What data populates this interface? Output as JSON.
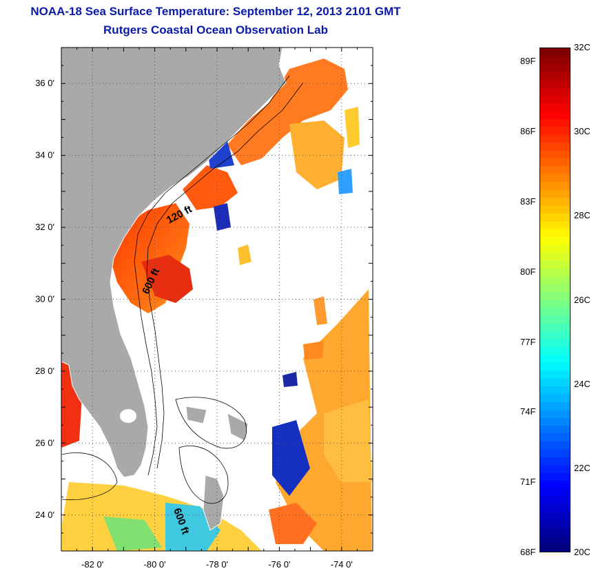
{
  "title": "NOAA-18 Sea Surface Temperature:  September 12, 2013 2101 GMT",
  "subtitle": "Rutgers Coastal Ocean Observation Lab",
  "map": {
    "lon_range": [
      -83.0,
      -73.0
    ],
    "lat_range": [
      23.0,
      37.0
    ],
    "lon_ticks": [
      {
        "value": -82,
        "label": "-82 0'"
      },
      {
        "value": -80,
        "label": "-80 0'"
      },
      {
        "value": -78,
        "label": "-78 0'"
      },
      {
        "value": -76,
        "label": "-76 0'"
      },
      {
        "value": -74,
        "label": "-74 0'"
      }
    ],
    "lat_ticks": [
      {
        "value": 24,
        "label": "24 0'"
      },
      {
        "value": 26,
        "label": "26 0'"
      },
      {
        "value": 28,
        "label": "28 0'"
      },
      {
        "value": 30,
        "label": "30 0'"
      },
      {
        "value": 32,
        "label": "32 0'"
      },
      {
        "value": 34,
        "label": "34 0'"
      },
      {
        "value": 36,
        "label": "36 0'"
      }
    ],
    "contour_labels": [
      "120 ft",
      "600 ft",
      "600 ft"
    ],
    "land_color": "#a9a9a9",
    "grid": true
  },
  "colorbar": {
    "min_c": 20,
    "max_c": 32,
    "colormap": "jet",
    "fahrenheit_labels": [
      "89F",
      "86F",
      "83F",
      "80F",
      "77F",
      "74F",
      "71F",
      "68F"
    ],
    "celsius_labels": [
      "32C",
      "30C",
      "28C",
      "26C",
      "24C",
      "22C",
      "20C"
    ]
  }
}
